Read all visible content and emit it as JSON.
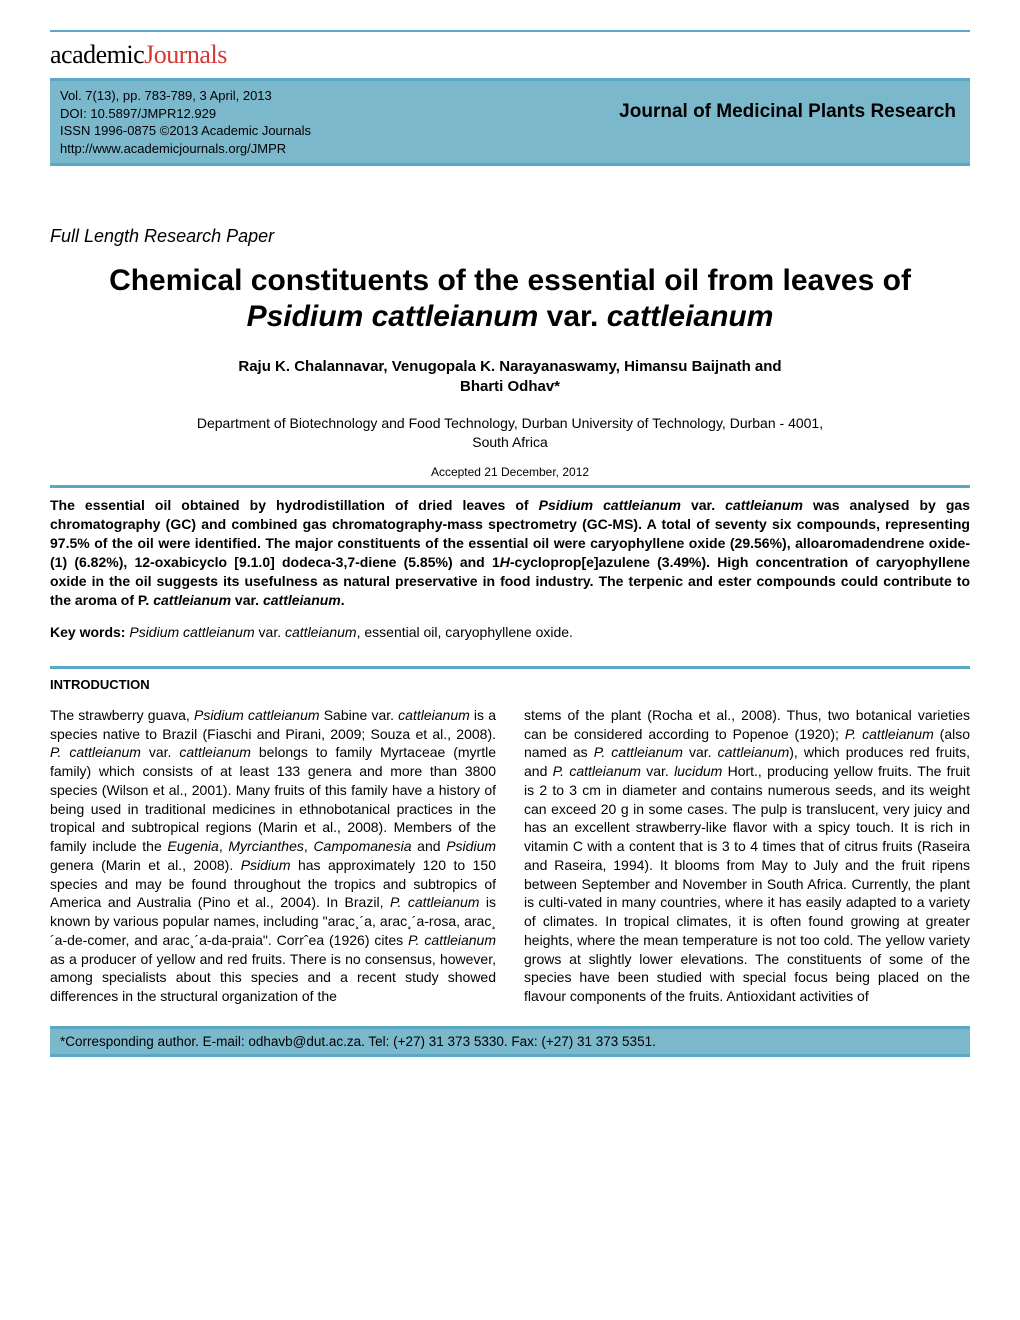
{
  "colors": {
    "rule": "#5ba8c4",
    "banner_bg": "#7cb8cc",
    "logo_black": "#000000",
    "logo_red": "#d43939",
    "text": "#000000",
    "background": "#ffffff"
  },
  "typography": {
    "body_family": "Arial",
    "logo_family": "Georgia",
    "header_meta_family": "Century Gothic",
    "title_size_pt": 22,
    "body_size_pt": 10.5,
    "header_meta_size_pt": 10,
    "journal_size_pt": 14
  },
  "logo": {
    "part1": "academic",
    "part2": "Journals"
  },
  "header": {
    "vol": "Vol. 7(13), pp. 783-789, 3 April, 2013",
    "doi": "DOI: 10.5897/JMPR12.929",
    "issn": "ISSN 1996-0875 ©2013 Academic Journals",
    "url": "http://www.academicjournals.org/JMPR",
    "journal": "Journal of Medicinal Plants Research"
  },
  "paper_type": "Full Length Research Paper",
  "title": {
    "pre": "Chemical constituents of the essential oil from leaves of ",
    "ital1": "Psidium cattleianum",
    "mid": " var. ",
    "ital2": "cattleianum"
  },
  "authors": {
    "line1": "Raju K. Chalannavar, Venugopala K. Narayanaswamy, Himansu Baijnath and",
    "line2": "Bharti Odhav*"
  },
  "affiliation": {
    "line1": "Department of Biotechnology and Food Technology, Durban University of Technology, Durban - 4001,",
    "line2": "South Africa"
  },
  "accepted": "Accepted 21 December, 2012",
  "abstract": "The essential oil obtained by hydrodistillation of dried leaves of <i>Psidium cattleianum</i> var. <i>cattleianum</i> was analysed by gas chromatography (GC) and combined gas chromatography-mass spectrometry (GC-MS). A total of seventy six compounds, representing 97.5% of the oil were identified. The major constituents of the essential oil were caryophyllene oxide (29.56%), alloaromadendrene oxide-(1) (6.82%), 12-oxabicyclo [9.1.0] dodeca-3,7-diene (5.85%) and 1<i>H</i>-cycloprop[e]azulene (3.49%).  High concentration of caryophyllene oxide in the oil suggests its usefulness as natural preservative in food industry.  The terpenic and ester compounds could contribute to the aroma of P. <i>cattleianum</i> var. <i>cattleianum</i>.",
  "keywords": {
    "label": "Key words: ",
    "text": "<i>Psidium cattleianum</i> var. <i>cattleianum</i>, essential oil, caryophyllene oxide."
  },
  "section_intro": "INTRODUCTION",
  "col_left": "The strawberry guava, <i>Psidium cattleianum</i> Sabine var. <i>cattleianum</i> is a species native to Brazil (Fiaschi and Pirani, 2009; Souza et al., 2008). <i>P. cattleianum</i> var. <i>cattleianum</i> belongs to family Myrtaceae (myrtle family) which consists of at least 133 genera and more than 3800 species (Wilson et al., 2001). Many fruits of this family have a history of being used in traditional medicines in ethnobotanical practices in the tropical and subtropical regions (Marin et al., 2008).  Members of the family include the <i>Eugenia</i>, <i>Myrcianthes</i>, <i>Campomanesia</i> and <i>Psidium</i> genera (Marin et al., 2008).  <i>Psidium</i> has approximately 120 to 150 species and may be found throughout the tropics and subtropics of America and Australia (Pino et al., 2004). In Brazil, <i>P. cattleianum</i> is known by various popular names, including \"arac¸´a, arac¸´a-rosa, arac¸´a-de-comer, and arac¸´a-da-praia\". Corrˆea (1926) cites <i>P. cattleianum</i> as a producer of yellow and red fruits. There is no consensus, however, among specialists about this species and a recent study showed differences in the  structural  organization  of  the",
  "col_right": "stems of the plant (Rocha et al., 2008). Thus, two botanical varieties can be considered according to Popenoe (1920); <i>P. cattleianum</i> (also named as <i>P. cattleianum</i> var. <i>cattleianum</i>), which produces red fruits, and <i>P. cattleianum</i> var. <i>lucidum</i> Hort., producing yellow fruits. The fruit is 2 to 3 cm in diameter and contains numerous seeds, and its weight can exceed 20 g in some cases. The pulp is translucent, very juicy and has an excellent strawberry-like flavor with a spicy touch. It is rich in vitamin C with a content that is 3 to 4 times that of citrus fruits (Raseira and Raseira, 1994). It blooms from May to July and the fruit ripens between September and November in South Africa.  Currently, the plant is culti-vated in many countries, where it has easily adapted to a variety of climates. In tropical climates, it is often found growing at greater heights, where the mean temperature is not too cold. The yellow variety grows at slightly lower elevations. The constituents of some of the species have been studied with special focus being placed on the flavour components of the fruits.  Antioxidant  activities  of",
  "footer": "*Corresponding author. E-mail: odhavb@dut.ac.za. Tel: (+27) 31 373 5330. Fax: (+27) 31 373 5351."
}
